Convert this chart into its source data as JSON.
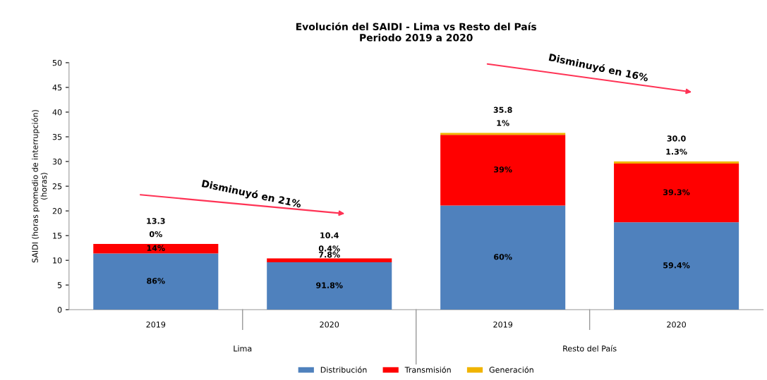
{
  "chart_data": {
    "type": "bar",
    "title": "Evolución del SAIDI - Lima vs Resto del País\nPeriodo 2019 a 2020",
    "ylabel": "SAIDI (horas promedio de interrupción)\n(horas)",
    "categories": [
      "2019",
      "2020",
      "2019",
      "2020"
    ],
    "ylim": [
      0,
      50
    ],
    "yticks": [
      0,
      5,
      10,
      15,
      20,
      25,
      30,
      35,
      40,
      45,
      50
    ],
    "stacked": true,
    "legend": "bottom",
    "series": [
      {
        "name": "Distribución",
        "color": "#4f81bd",
        "values": [
          11.4,
          9.6,
          21.1,
          17.7
        ]
      },
      {
        "name": "Transmisión",
        "color": "#ff0000",
        "values": [
          1.9,
          0.8,
          14.3,
          11.9
        ]
      },
      {
        "name": "Generación",
        "color": "#f0b400",
        "values": [
          0.0,
          0.0,
          0.4,
          0.4
        ]
      }
    ],
    "totals": [
      "13.3",
      "10.4",
      "35.8",
      "30.0"
    ],
    "annotations": [
      "Lima",
      "Resto del País",
      "Disminuyó en 21%",
      "Disminuyó en 16%",
      "86%",
      "14%",
      "0%",
      "91.8%",
      "7.8%",
      "0.4%",
      "60%",
      "39%",
      "1%",
      "59.4%",
      "39.3%",
      "1.3%"
    ]
  }
}
